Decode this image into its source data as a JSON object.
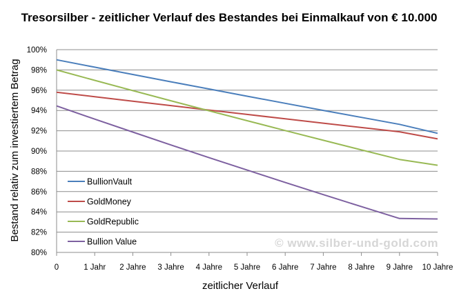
{
  "chart_data": {
    "type": "line",
    "title": "Tresorsilber - zeitlicher Verlauf des Bestandes bei Einmalkauf von € 10.000",
    "xlabel": "zeitlicher Verlauf",
    "ylabel": "Bestand relativ zum investiertem Betrag",
    "categories": [
      "0",
      "1 Jahr",
      "2 Jahre",
      "3 Jahre",
      "4 Jahre",
      "5 Jahre",
      "6 Jahre",
      "7 Jahre",
      "8 Jahre",
      "9 Jahre",
      "10 Jahre"
    ],
    "x": [
      0,
      1,
      2,
      3,
      4,
      5,
      6,
      7,
      8,
      9,
      10
    ],
    "ylim": [
      80,
      100
    ],
    "yticks": [
      80,
      82,
      84,
      86,
      88,
      90,
      92,
      94,
      96,
      98,
      100
    ],
    "ytick_labels": [
      "80%",
      "82%",
      "84%",
      "86%",
      "88%",
      "90%",
      "92%",
      "94%",
      "96%",
      "98%",
      "100%"
    ],
    "grid": true,
    "legend_position": "bottom-left",
    "series": [
      {
        "name": "BullionVault",
        "color": "#4a7ebb",
        "values": [
          99.0,
          98.27,
          97.55,
          96.83,
          96.12,
          95.41,
          94.71,
          94.01,
          93.32,
          92.63,
          91.75
        ]
      },
      {
        "name": "GoldMoney",
        "color": "#be4b48",
        "values": [
          95.8,
          95.36,
          94.92,
          94.48,
          94.04,
          93.61,
          93.18,
          92.75,
          92.32,
          91.9,
          91.2
        ]
      },
      {
        "name": "GoldRepublic",
        "color": "#98b954",
        "values": [
          98.0,
          96.97,
          95.96,
          94.96,
          93.97,
          92.99,
          92.02,
          91.06,
          90.11,
          89.17,
          88.6
        ]
      },
      {
        "name": "Bullion Value",
        "color": "#7d60a0",
        "values": [
          94.45,
          93.15,
          91.87,
          90.6,
          89.35,
          88.12,
          86.9,
          85.7,
          84.52,
          83.35,
          83.3
        ]
      }
    ],
    "watermark": "© www.silber-und-gold.com"
  }
}
